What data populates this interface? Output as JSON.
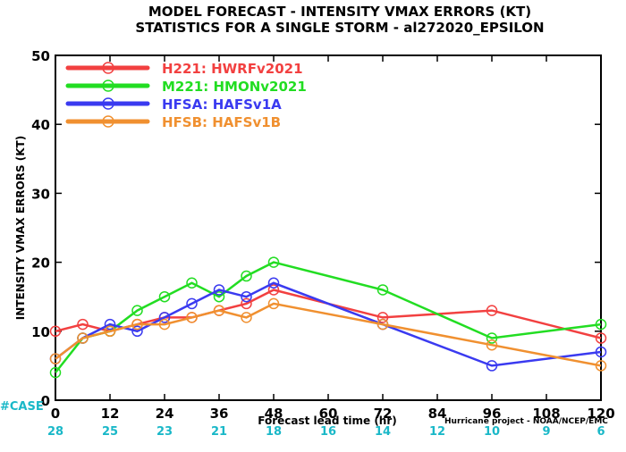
{
  "title_lines": [
    "MODEL FORECAST - INTENSITY VMAX ERRORS (KT)",
    "STATISTICS FOR A SINGLE STORM - al272020_EPSILON"
  ],
  "credit": "Hurricane project - NOAA/NCEP/EMC",
  "case_prefix": "#CASE",
  "case_color": "#1ab8c8",
  "chart_data": {
    "type": "line",
    "xlabel": "Forecast lead time (hr)",
    "ylabel": "INTENSITY VMAX ERRORS (KT)",
    "xlim": [
      0,
      120
    ],
    "ylim": [
      0,
      50
    ],
    "x_ticks": [
      0,
      12,
      24,
      36,
      48,
      60,
      72,
      84,
      96,
      108,
      120
    ],
    "y_ticks": [
      0,
      10,
      20,
      30,
      40,
      50
    ],
    "case_counts": [
      28,
      25,
      23,
      21,
      18,
      16,
      14,
      12,
      10,
      9,
      6
    ],
    "grid": false,
    "legend_position": "top-left",
    "series": [
      {
        "name": "H221: HWRFv2021",
        "color": "#f24040",
        "x": [
          0,
          6,
          12,
          18,
          24,
          30,
          36,
          42,
          48,
          72,
          96,
          120
        ],
        "y": [
          10,
          11,
          10,
          11,
          12,
          12,
          13,
          14,
          16,
          12,
          13,
          9
        ]
      },
      {
        "name": "M221: HMONv2021",
        "color": "#22dd22",
        "x": [
          0,
          6,
          12,
          18,
          24,
          30,
          36,
          42,
          48,
          72,
          96,
          120
        ],
        "y": [
          4,
          9,
          10,
          13,
          15,
          17,
          15,
          18,
          20,
          16,
          9,
          11
        ]
      },
      {
        "name": "HFSA: HAFSv1A",
        "color": "#3a3af0",
        "x": [
          0,
          6,
          12,
          18,
          24,
          30,
          36,
          42,
          48,
          72,
          96,
          120
        ],
        "y": [
          6,
          9,
          11,
          10,
          12,
          14,
          16,
          15,
          17,
          11,
          5,
          7
        ]
      },
      {
        "name": "HFSB: HAFSv1B",
        "color": "#f09030",
        "x": [
          0,
          6,
          12,
          18,
          24,
          30,
          36,
          42,
          48,
          72,
          96,
          120
        ],
        "y": [
          6,
          9,
          10,
          11,
          11,
          12,
          13,
          12,
          14,
          11,
          8,
          5
        ]
      }
    ]
  }
}
